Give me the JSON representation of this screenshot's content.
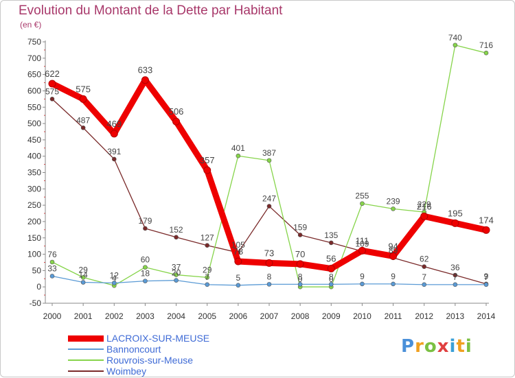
{
  "title": "Evolution du Montant de la Dette par Habitant",
  "unit": "(en €)",
  "logo": {
    "text": "Proxiti",
    "colors": [
      "#4a90d9",
      "#f0a020",
      "#7bc043",
      "#e04040",
      "#3aa0d8",
      "#f0a020",
      "#7bc043"
    ]
  },
  "chart_data": {
    "type": "line",
    "x": [
      "2000",
      "2001",
      "2002",
      "2003",
      "2004",
      "2005",
      "2006",
      "2007",
      "2008",
      "2009",
      "2010",
      "2011",
      "2012",
      "2013",
      "2014"
    ],
    "ylim": [
      -50,
      750
    ],
    "yticks": [
      -50,
      0,
      50,
      100,
      150,
      200,
      250,
      300,
      350,
      400,
      450,
      500,
      550,
      600,
      650,
      700,
      750
    ],
    "grid": false,
    "legend_position": "bottom-left",
    "series": [
      {
        "name": "LACROIX-SUR-MEUSE",
        "color": "#ee0000",
        "values": [
          622,
          575,
          469,
          633,
          506,
          357,
          78,
          73,
          70,
          56,
          111,
          94,
          216,
          195,
          174
        ],
        "labels": [
          "622",
          "575",
          "469",
          "633",
          "506",
          "357",
          "78",
          "73",
          "70",
          "56",
          "111",
          "94",
          "216",
          "195",
          "174"
        ]
      },
      {
        "name": "Bannoncourt",
        "color": "#5a9ad5",
        "values": [
          33,
          14,
          12,
          18,
          20,
          7,
          5,
          8,
          8,
          8,
          9,
          9,
          7,
          7,
          7
        ],
        "labels": [
          "33",
          "14",
          "12",
          "18",
          "20",
          "7",
          "5",
          "8",
          "8",
          "8",
          "9",
          "9",
          "7",
          "7",
          "7"
        ]
      },
      {
        "name": "Rouvrois-sur-Meuse",
        "color": "#86d44a",
        "values": [
          76,
          29,
          4,
          60,
          37,
          29,
          401,
          387,
          0,
          0,
          255,
          239,
          229,
          740,
          716
        ],
        "labels": [
          "76",
          "29",
          "4",
          "60",
          "37",
          "29",
          "401",
          "387",
          "0",
          "0",
          "255",
          "239",
          "229",
          "740",
          "716"
        ]
      },
      {
        "name": "Woimbey",
        "color": "#7a2a2a",
        "values": [
          575,
          487,
          391,
          179,
          152,
          127,
          105,
          247,
          159,
          135,
          109,
          89,
          62,
          36,
          9
        ],
        "labels": [
          "575",
          "487",
          "391",
          "179",
          "152",
          "127",
          "105",
          "247",
          "159",
          "135",
          "109",
          "89",
          "62",
          "36",
          "9"
        ]
      }
    ]
  }
}
